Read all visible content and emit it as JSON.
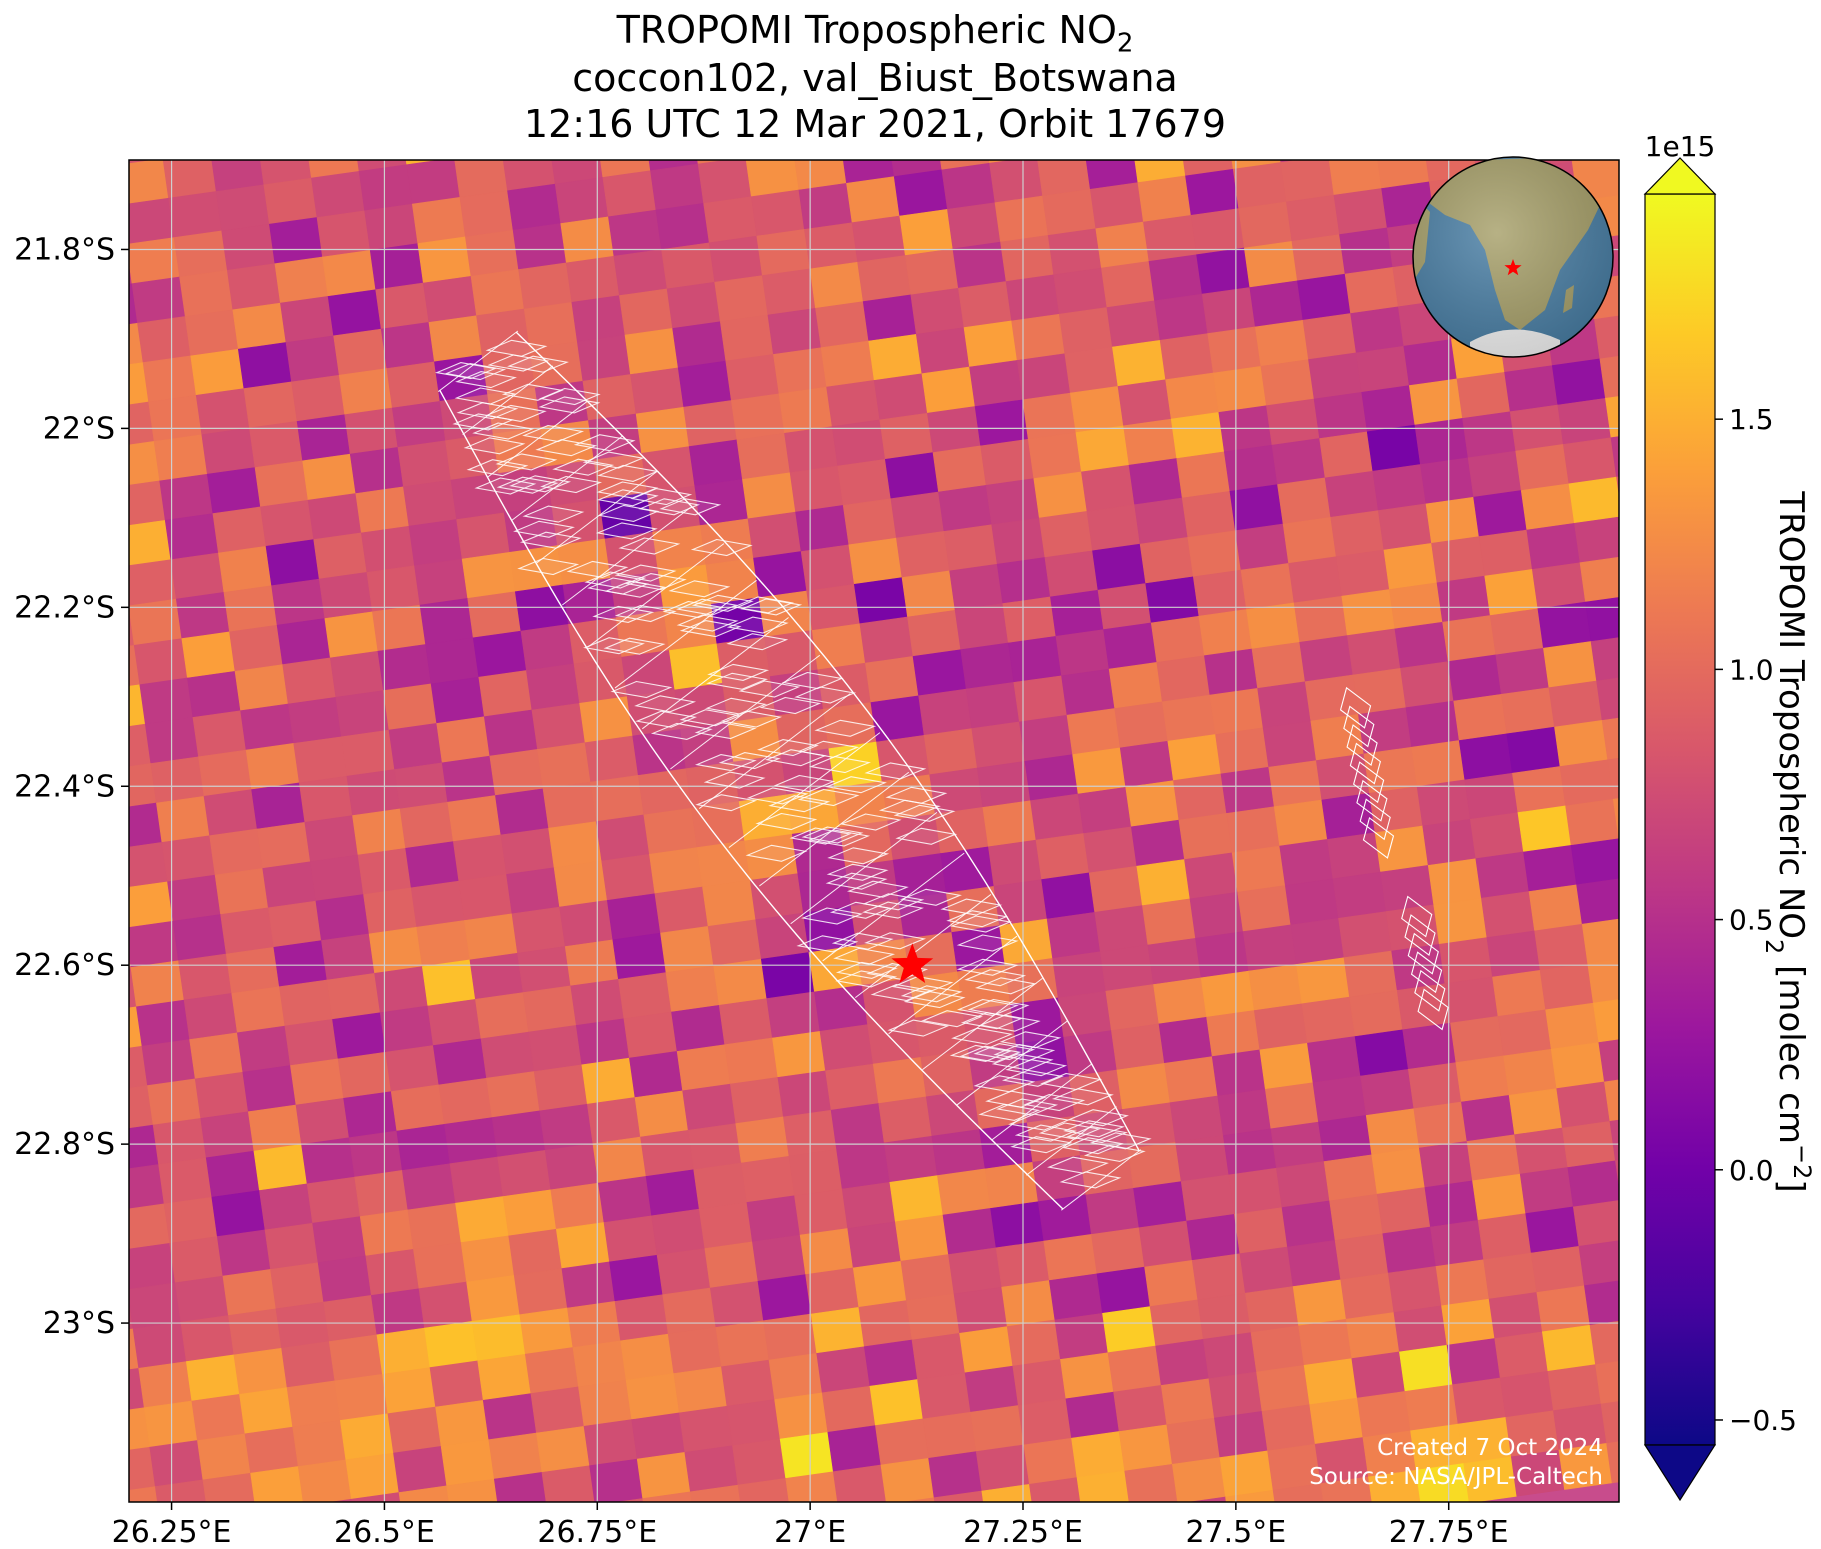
{
  "title": {
    "line1_main": "TROPOMI Tropospheric NO",
    "line1_sub": "2",
    "line2": "coccon102, val_Biust_Botswana",
    "line3": "12:16 UTC 12 Mar 2021, Orbit 17679"
  },
  "colors": {
    "plasma_stops": [
      "#0d0887",
      "#46039f",
      "#7201a8",
      "#9c179e",
      "#bd3786",
      "#d8576b",
      "#ed7953",
      "#fb9f3a",
      "#fdca26",
      "#f0f921"
    ],
    "footprint_outline": "#ffffff",
    "site_marker": "#ff0000",
    "ocean": "#4a7fa5",
    "land": "#a7a06a",
    "gridline": "#cfcfcf"
  },
  "chart_data": {
    "type": "heatmap",
    "projection": "lat-lon",
    "x_axis": {
      "range_deg_e": [
        26.2,
        27.95
      ],
      "tick_values": [
        26.25,
        26.5,
        26.75,
        27.0,
        27.25,
        27.5,
        27.75
      ],
      "tick_labels": [
        "26.25°E",
        "26.5°E",
        "26.75°E",
        "27°E",
        "27.25°E",
        "27.5°E",
        "27.75°E"
      ]
    },
    "y_axis": {
      "range_deg_s": [
        21.7,
        23.2
      ],
      "tick_values": [
        21.8,
        22.0,
        22.2,
        22.4,
        22.6,
        22.8,
        23.0
      ],
      "tick_labels": [
        "21.8°S",
        "22°S",
        "22.2°S",
        "22.4°S",
        "22.6°S",
        "22.8°S",
        "23°S"
      ]
    },
    "grid": true,
    "colorbar": {
      "label_main": "TROPOMI Tropospheric NO",
      "label_sub": "2",
      "label_unit_open": " [molec cm",
      "label_unit_sup": "−2",
      "label_unit_close": "]",
      "multiplier": "1e15",
      "range": [
        -0.55,
        1.95
      ],
      "extend": "both",
      "tick_values": [
        -0.5,
        0.0,
        0.5,
        1.0,
        1.5
      ],
      "tick_labels": [
        "−0.5",
        "0.0",
        "0.5",
        "1.0",
        "1.5"
      ]
    },
    "site": {
      "marker": "star",
      "lon": 27.12,
      "lat": -22.6
    },
    "ftir_footprint": {
      "outline_color": "#ffffff",
      "main_track": [
        [
          26.52,
          -21.92
        ],
        [
          26.7,
          -21.93
        ],
        [
          27.44,
          -22.76
        ],
        [
          27.47,
          -22.85
        ],
        [
          27.22,
          -22.83
        ]
      ],
      "secondary_track": [
        [
          27.63,
          -22.29
        ],
        [
          27.68,
          -22.56
        ]
      ]
    },
    "tropomi_grid": {
      "pixel_size_deg_lon": 0.0565,
      "pixel_size_deg_lat": 0.0445,
      "value_range": [
        -0.55,
        1.95
      ],
      "mean": 0.85,
      "note_units": "1e15 molec cm-2"
    },
    "inset_globe": {
      "center_lon": 20,
      "center_lat": -15,
      "marker_lon": 25.7,
      "marker_lat": -22.6
    }
  },
  "credits": {
    "line1": "Created 7 Oct 2024",
    "line2": "Source: NASA/JPL-Caltech"
  }
}
